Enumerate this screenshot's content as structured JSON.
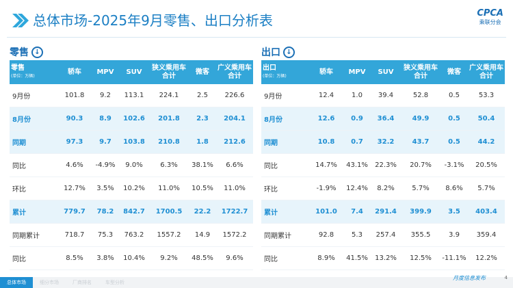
{
  "header": {
    "title": "总体市场-2025年9月零售、出口分析表",
    "logo": "CPCA",
    "logo_sub": "乘联分会"
  },
  "tables": [
    {
      "section": "零售",
      "corner": "零售",
      "unit": "(单位：万辆)",
      "columns": [
        "轿车",
        "MPV",
        "SUV",
        "狭义乘用车合计",
        "微客",
        "广义乘用车合计"
      ],
      "rows": [
        [
          "9月份",
          "101.8",
          "9.2",
          "113.1",
          "224.1",
          "2.5",
          "226.6"
        ],
        [
          "8月份",
          "90.3",
          "8.9",
          "102.6",
          "201.8",
          "2.3",
          "204.1"
        ],
        [
          "同期",
          "97.3",
          "9.7",
          "103.8",
          "210.8",
          "1.8",
          "212.6"
        ],
        [
          "同比",
          "4.6%",
          "-4.9%",
          "9.0%",
          "6.3%",
          "38.1%",
          "6.6%"
        ],
        [
          "环比",
          "12.7%",
          "3.5%",
          "10.2%",
          "11.0%",
          "10.5%",
          "11.0%"
        ],
        [
          "累计",
          "779.7",
          "78.2",
          "842.7",
          "1700.5",
          "22.2",
          "1722.7"
        ],
        [
          "同期累计",
          "718.7",
          "75.3",
          "763.2",
          "1557.2",
          "14.9",
          "1572.2"
        ],
        [
          "同比",
          "8.5%",
          "3.8%",
          "10.4%",
          "9.2%",
          "48.5%",
          "9.6%"
        ]
      ]
    },
    {
      "section": "出口",
      "corner": "出口",
      "unit": "(单位：万辆)",
      "columns": [
        "轿车",
        "MPV",
        "SUV",
        "狭义乘用车合计",
        "微客",
        "广义乘用车合计"
      ],
      "rows": [
        [
          "9月份",
          "12.4",
          "1.0",
          "39.4",
          "52.8",
          "0.5",
          "53.3"
        ],
        [
          "8月份",
          "12.6",
          "0.9",
          "36.4",
          "49.9",
          "0.5",
          "50.4"
        ],
        [
          "同期",
          "10.8",
          "0.7",
          "32.2",
          "43.7",
          "0.5",
          "44.2"
        ],
        [
          "同比",
          "14.7%",
          "43.1%",
          "22.3%",
          "20.7%",
          "-3.1%",
          "20.5%"
        ],
        [
          "环比",
          "-1.9%",
          "12.4%",
          "8.2%",
          "5.7%",
          "8.6%",
          "5.7%"
        ],
        [
          "累计",
          "101.0",
          "7.4",
          "291.4",
          "399.9",
          "3.5",
          "403.4"
        ],
        [
          "同期累计",
          "92.8",
          "5.3",
          "257.4",
          "355.5",
          "3.9",
          "359.4"
        ],
        [
          "同比",
          "8.9%",
          "41.5%",
          "13.2%",
          "12.5%",
          "-11.1%",
          "12.2%"
        ]
      ]
    }
  ],
  "footer": {
    "tabs": [
      "总体市场",
      "细分市场",
      "厂商排名",
      "车型分析"
    ],
    "note": "月度信息发布",
    "page": "4"
  }
}
